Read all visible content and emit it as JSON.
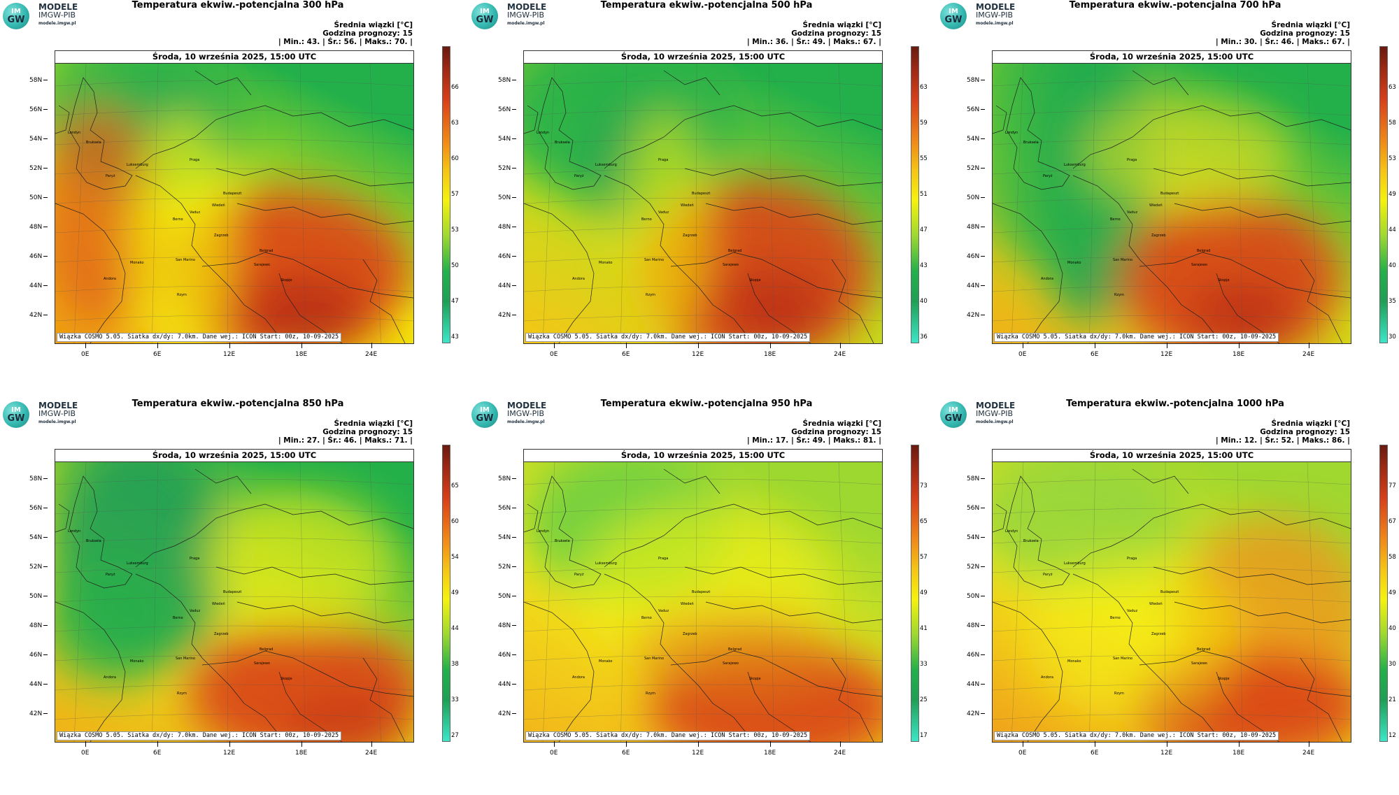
{
  "logo": {
    "circle_top": "IM",
    "circle_bottom": "GW",
    "line1": "MODELE",
    "line2": "IMGW-PIB",
    "line3": "modele.imgw.pl"
  },
  "date_label": "Środa, 10 września 2025, 15:00 UTC",
  "footer": "Wiązka COSMO 5.05. Siatka dx/dy: 7.0km. Dane wej.: ICON Start: 00z, 10-09-2025",
  "stats_line1": "Średnia wiązki [°C]",
  "stats_line2": "Godzina prognozy: 15",
  "lat_labels": [
    "58N",
    "56N",
    "54N",
    "52N",
    "50N",
    "48N",
    "46N",
    "44N",
    "42N"
  ],
  "lon_labels": [
    "0E",
    "6E",
    "12E",
    "18E",
    "24E"
  ],
  "cities": [
    "Londyn",
    "Bruksela",
    "Paryż",
    "Luksemburg",
    "Praga",
    "Wiedeń",
    "Budapeszt",
    "Berno",
    "Vaduz",
    "Zagrzeb",
    "Belgrad",
    "Sarajewo",
    "San Marino",
    "Monako",
    "Andora",
    "Rzym",
    "Skopje"
  ],
  "colors": {
    "low": "#3ce6c8",
    "green": "#23b04a",
    "yellow": "#f5f20e",
    "orange": "#f0a010",
    "red": "#d8401a",
    "darkred": "#6a1a10"
  },
  "panels": [
    {
      "title": "Temperatura ekwiw.-potencjalna 300 hPa",
      "min": "43.",
      "avg": "56.",
      "max": "70.",
      "min_label": "| Min.:",
      "avg_label": "| Śr.:",
      "max_label": "| Maks.:",
      "ticks": [
        "66",
        "63",
        "60",
        "57",
        "53",
        "50",
        "47",
        "43"
      ]
    },
    {
      "title": "Temperatura ekwiw.-potencjalna 500 hPa",
      "min": "36.",
      "avg": "49.",
      "max": "67.",
      "min_label": "| Min.:",
      "avg_label": "| Śr.:",
      "max_label": "| Maks.:",
      "ticks": [
        "63",
        "59",
        "55",
        "51",
        "47",
        "43",
        "40",
        "36"
      ]
    },
    {
      "title": "Temperatura ekwiw.-potencjalna 700 hPa",
      "min": "30.",
      "avg": "46.",
      "max": "67.",
      "min_label": "| Min.:",
      "avg_label": "| Śr.:",
      "max_label": "| Maks.:",
      "ticks": [
        "63",
        "58",
        "53",
        "49",
        "44",
        "40",
        "35",
        "30"
      ]
    },
    {
      "title": "Temperatura ekwiw.-potencjalna 850 hPa",
      "min": "27.",
      "avg": "46.",
      "max": "71.",
      "min_label": "| Min.:",
      "avg_label": "| Śr.:",
      "max_label": "| Maks.:",
      "ticks": [
        "65",
        "60",
        "54",
        "49",
        "44",
        "38",
        "33",
        "27"
      ]
    },
    {
      "title": "Temperatura ekwiw.-potencjalna 950 hPa",
      "min": "17.",
      "avg": "49.",
      "max": "81.",
      "min_label": "| Min.:",
      "avg_label": "| Śr.:",
      "max_label": "| Maks.:",
      "ticks": [
        "73",
        "65",
        "57",
        "49",
        "41",
        "33",
        "25",
        "17"
      ]
    },
    {
      "title": "Temperatura ekwiw.-potencjalna 1000 hPa",
      "min": "12.",
      "avg": "52.",
      "max": "86.",
      "min_label": "| Min.:",
      "avg_label": "| Śr.:",
      "max_label": "| Maks.:",
      "ticks": [
        "77",
        "67",
        "58",
        "49",
        "40",
        "30",
        "21",
        "12"
      ]
    }
  ]
}
